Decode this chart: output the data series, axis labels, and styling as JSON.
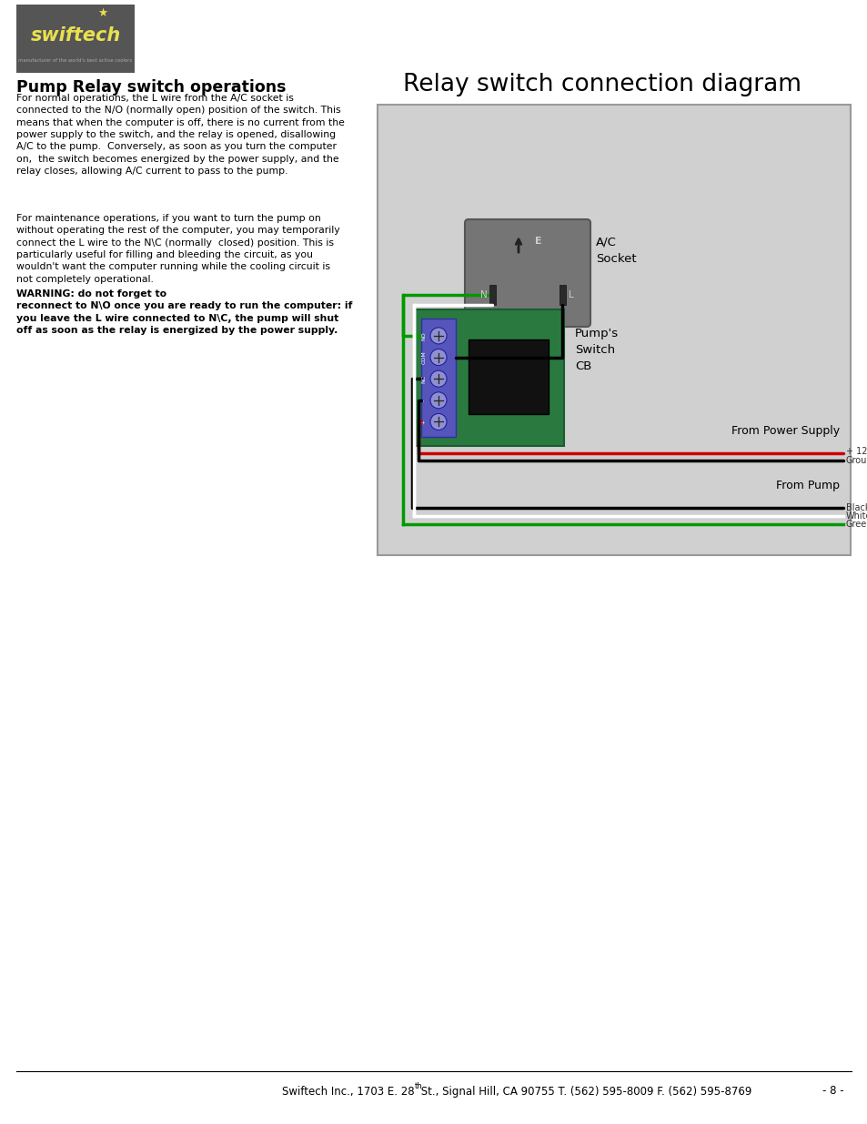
{
  "page_bg": "#ffffff",
  "title_left": "Pump Relay switch operations",
  "diagram_title": "Relay switch connection diagram",
  "body_text_para1": "For normal operations, the L wire from the A/C socket is\nconnected to the N/O (normally open) position of the switch. This\nmeans that when the computer is off, there is no current from the\npower supply to the switch, and the relay is opened, disallowing\nA/C to the pump.  Conversely, as soon as you turn the computer\non,  the switch becomes energized by the power supply, and the\nrelay closes, allowing A/C current to pass to the pump.",
  "body_text_para2_normal": "For maintenance operations, if you want to turn the pump on\nwithout operating the rest of the computer, you may temporarily\nconnect the L wire to the N\\C (normally  closed) position. This is\nparticularly useful for filling and bleeding the circuit, as you\nwouldn't want the computer running while the cooling circuit is\nnot completely operational. ",
  "body_text_para2_bold": "WARNING: do not forget to\nreconnect to N\\O once you are ready to run the computer: if\nyou leave the L wire connected to N\\C, the pump will shut\noff as soon as the relay is energized by the power supply.",
  "footer_text": "Swiftech Inc., 1703 E. 28  St., Signal Hill, CA 90755 T. (562) 595-8009 F. (562) 595-8769",
  "footer_page": "- 8 -",
  "diagram_bg": "#d0d0d0",
  "ac_socket_color": "#757575",
  "relay_board_color": "#2a7a40",
  "relay_connector_color": "#5555bb",
  "relay_black_box": "#111111",
  "wire_green": "#009900",
  "wire_black": "#000000",
  "wire_white": "#ffffff",
  "wire_red": "#cc0000",
  "logo_bg": "#555555",
  "logo_text_color": "#e8e050",
  "logo_sub_color": "#aaaaaa"
}
